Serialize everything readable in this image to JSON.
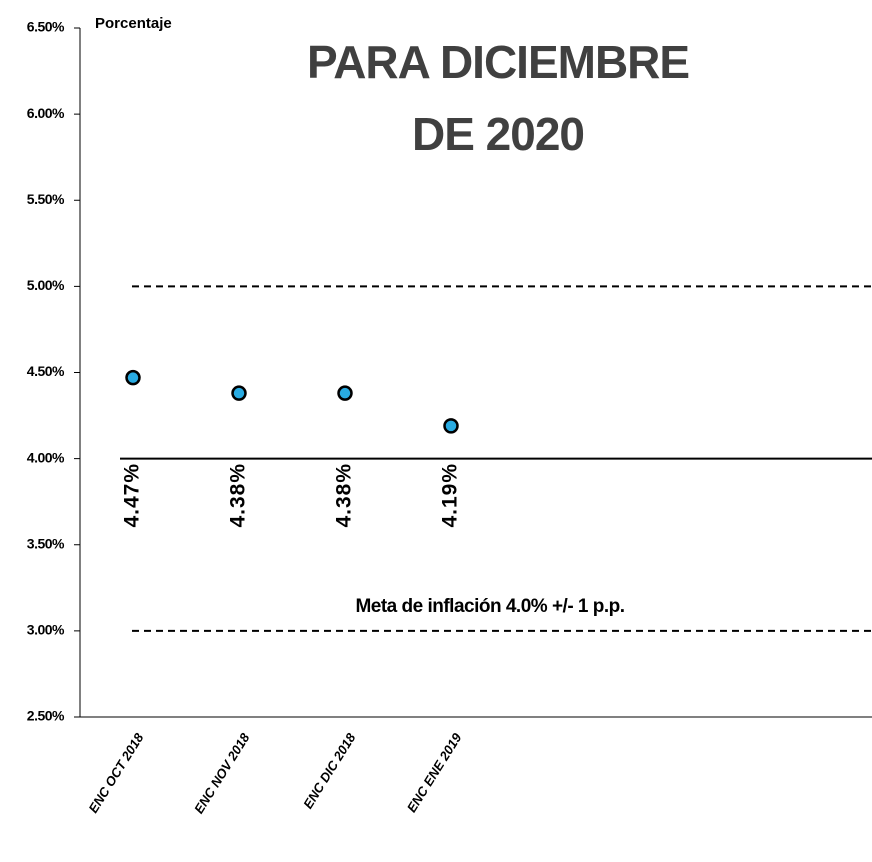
{
  "chart_data": {
    "type": "scatter",
    "title": [
      "PARA DICIEMBRE",
      "DE 2020"
    ],
    "y_label": "Porcentaje",
    "categories": [
      "ENC OCT 2018",
      "ENC NOV 2018",
      "ENC DIC 2018",
      "ENC ENE 2019"
    ],
    "values": [
      4.47,
      4.38,
      4.38,
      4.19
    ],
    "value_labels": [
      "4.47%",
      "4.38%",
      "4.38%",
      "4.19%"
    ],
    "color": "#29abe2",
    "ylim": [
      2.5,
      6.5
    ],
    "yticks": [
      {
        "value": 2.5,
        "label": "2.50%"
      },
      {
        "value": 3,
        "label": "3.00%"
      },
      {
        "value": 3.5,
        "label": "3.50%"
      },
      {
        "value": 4,
        "label": "4.00%"
      },
      {
        "value": 4.5,
        "label": "4.50%"
      },
      {
        "value": 5,
        "label": "5.00%"
      },
      {
        "value": 5.5,
        "label": "5.50%"
      },
      {
        "value": 6,
        "label": "6.00%"
      },
      {
        "value": 6.5,
        "label": "6.50%"
      }
    ],
    "reference_lines": [
      {
        "value": 5,
        "style": "dashed"
      },
      {
        "value": 4,
        "style": "solid"
      },
      {
        "value": 3,
        "style": "dashed"
      }
    ],
    "annotation": "Meta de inflación 4.0% +/- 1 p.p."
  }
}
